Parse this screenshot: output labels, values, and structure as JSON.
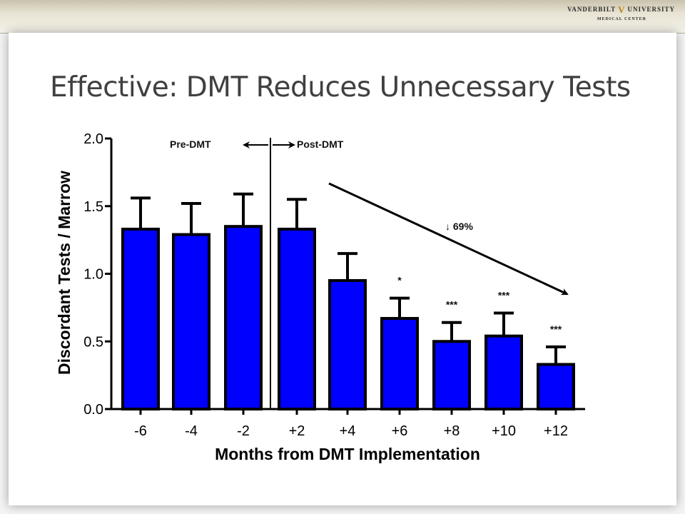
{
  "header": {
    "logo_line1_left": "VANDERBILT",
    "logo_line1_right": "UNIVERSITY",
    "logo_line2": "MEDICAL CENTER"
  },
  "slide": {
    "title": "Effective: DMT Reduces Unnecessary Tests"
  },
  "colors": {
    "bar_fill": "#0000ff",
    "bar_stroke": "#000000",
    "title": "#404040"
  },
  "chart_data": {
    "type": "bar",
    "categories": [
      "-6",
      "-4",
      "-2",
      "+2",
      "+4",
      "+6",
      "+8",
      "+10",
      "+12"
    ],
    "series": [
      {
        "values": [
          1.33,
          1.29,
          1.35,
          1.33,
          0.95,
          0.67,
          0.5,
          0.54,
          0.33
        ],
        "error": [
          0.23,
          0.23,
          0.24,
          0.22,
          0.2,
          0.15,
          0.14,
          0.17,
          0.13
        ]
      }
    ],
    "xlabel": "Months from DMT Implementation",
    "ylabel": "Discordant Tests / Marrow",
    "ylim": [
      0,
      2.0
    ],
    "yticks": [
      "0.0",
      "0.5",
      "1.0",
      "1.5",
      "2.0"
    ],
    "grid": false,
    "legend": "none",
    "significance": [
      "",
      "",
      "",
      "",
      "",
      "*",
      "***",
      "***",
      "***"
    ],
    "divider_label_left": "Pre-DMT",
    "divider_label_right": "Post-DMT",
    "trend_label": "↓ 69%"
  }
}
